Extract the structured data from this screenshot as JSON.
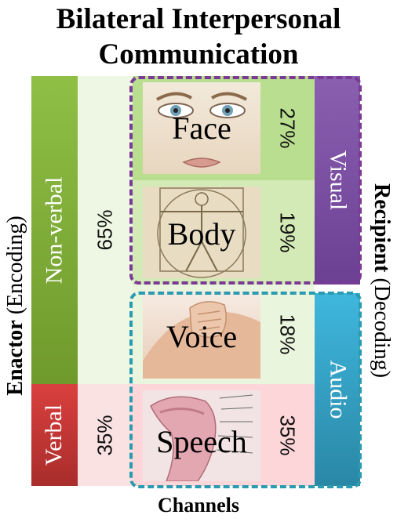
{
  "title": {
    "line1": "Bilateral Interpersonal",
    "line2": "Communication"
  },
  "footer": "Channels",
  "enactor": {
    "caption_bold": "Enactor",
    "caption_rest": " (Encoding)",
    "groups": [
      {
        "label": "Non-verbal",
        "percent": "65%",
        "color": "#7ba838"
      },
      {
        "label": "Verbal",
        "percent": "35%",
        "color": "#c93a38"
      }
    ]
  },
  "recipient": {
    "caption_bold": "Recipient",
    "caption_rest": " (Decoding)",
    "groups": [
      {
        "label": "Visual",
        "color": "#7b4fa3"
      },
      {
        "label": "Audio",
        "color": "#33a4c9"
      }
    ]
  },
  "channels": [
    {
      "label": "Face",
      "percent": "27%",
      "icon": "face-illustration"
    },
    {
      "label": "Body",
      "percent": "19%",
      "icon": "vitruvian-man-illustration"
    },
    {
      "label": "Voice",
      "percent": "18%",
      "icon": "hand-to-mouth-illustration"
    },
    {
      "label": "Speech",
      "percent": "35%",
      "icon": "vocal-tract-illustration"
    }
  ]
}
